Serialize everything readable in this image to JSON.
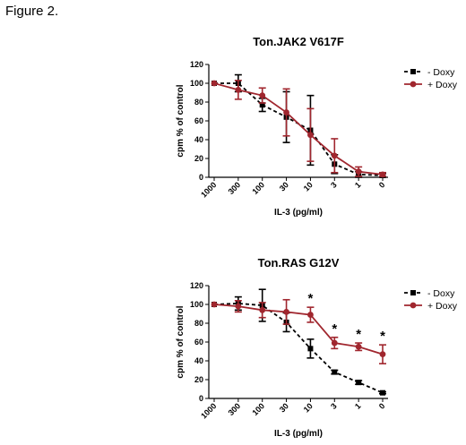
{
  "caption": "Figure 2.",
  "colors": {
    "minus_doxy": "#000000",
    "plus_doxy": "#a0262e"
  },
  "chart_data": [
    {
      "type": "line",
      "title": "Ton.JAK2 V617F",
      "xlabel": "IL-3 (pg/ml)",
      "ylabel": "cpm % of control",
      "categories": [
        "1000",
        "300",
        "100",
        "30",
        "10",
        "3",
        "1",
        "0"
      ],
      "ylim": [
        0,
        120
      ],
      "yticks": [
        "0",
        "20",
        "40",
        "60",
        "80",
        "100",
        "120"
      ],
      "legend_position": "top-right",
      "series": [
        {
          "name": "- Doxy",
          "style": "dashed",
          "marker": "square",
          "color": "#000000",
          "values": [
            100,
            100,
            77,
            64,
            50,
            14,
            3,
            2
          ],
          "errors": [
            0,
            9,
            7,
            27,
            37,
            10,
            3,
            2
          ]
        },
        {
          "name": "+ Doxy",
          "style": "solid",
          "marker": "circle",
          "color": "#a0262e",
          "values": [
            100,
            93,
            87,
            69,
            45,
            23,
            6,
            3
          ],
          "errors": [
            0,
            10,
            8,
            25,
            28,
            18,
            5,
            2
          ]
        }
      ],
      "annotations": []
    },
    {
      "type": "line",
      "title": "Ton.RAS G12V",
      "xlabel": "IL-3 (pg/ml)",
      "ylabel": "cpm % of control",
      "categories": [
        "1000",
        "300",
        "100",
        "30",
        "10",
        "3",
        "1",
        "0"
      ],
      "ylim": [
        0,
        120
      ],
      "yticks": [
        "0",
        "20",
        "40",
        "60",
        "80",
        "100",
        "120"
      ],
      "legend_position": "top-right",
      "series": [
        {
          "name": "- Doxy",
          "style": "dashed",
          "marker": "square",
          "color": "#000000",
          "values": [
            100,
            101,
            99,
            81,
            53,
            28,
            17,
            6
          ],
          "errors": [
            0,
            7,
            17,
            10,
            10,
            2,
            2,
            1
          ]
        },
        {
          "name": "+ Doxy",
          "style": "solid",
          "marker": "circle",
          "color": "#a0262e",
          "values": [
            100,
            98,
            94,
            92,
            89,
            59,
            55,
            47
          ],
          "errors": [
            0,
            6,
            8,
            13,
            8,
            6,
            4,
            10
          ]
        }
      ],
      "annotations": [
        {
          "category": "10",
          "text": "*"
        },
        {
          "category": "3",
          "text": "*"
        },
        {
          "category": "1",
          "text": "*"
        },
        {
          "category": "0",
          "text": "*"
        }
      ]
    }
  ]
}
